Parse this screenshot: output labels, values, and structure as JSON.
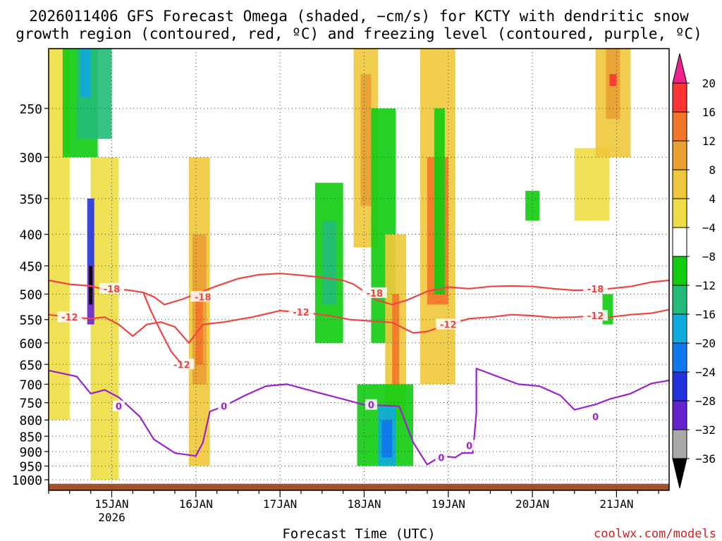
{
  "chart_data": {
    "type": "heatmap",
    "title_line1": "2026011406 GFS Forecast Omega (shaded, −cm/s) for KCTY with dendritic snow",
    "title_line2": "growth region (contoured, red, ºC) and freezing level (contoured, purple, ºC)",
    "xlabel": "Forecast Time (UTC)",
    "credit": "coolwx.com/models",
    "x_range_hours": [
      0,
      177
    ],
    "x_ticks": [
      {
        "hour": 18,
        "label": "15JAN",
        "sub": "2026"
      },
      {
        "hour": 42,
        "label": "16JAN",
        "sub": ""
      },
      {
        "hour": 66,
        "label": "17JAN",
        "sub": ""
      },
      {
        "hour": 90,
        "label": "18JAN",
        "sub": ""
      },
      {
        "hour": 114,
        "label": "19JAN",
        "sub": ""
      },
      {
        "hour": 138,
        "label": "20JAN",
        "sub": ""
      },
      {
        "hour": 162,
        "label": "21JAN",
        "sub": ""
      }
    ],
    "y_range_hpa": [
      1040,
      200
    ],
    "y_ticks": [
      {
        "p": 250,
        "label": "250"
      },
      {
        "p": 300,
        "label": "300"
      },
      {
        "p": 350,
        "label": "350"
      },
      {
        "p": 400,
        "label": "400"
      },
      {
        "p": 450,
        "label": "450"
      },
      {
        "p": 500,
        "label": "500"
      },
      {
        "p": 550,
        "label": "550"
      },
      {
        "p": 600,
        "label": "600"
      },
      {
        "p": 650,
        "label": "650"
      },
      {
        "p": 700,
        "label": "700"
      },
      {
        "p": 750,
        "label": "750"
      },
      {
        "p": 800,
        "label": "800"
      },
      {
        "p": 850,
        "label": "850"
      },
      {
        "p": 900,
        "label": "900"
      },
      {
        "p": 950,
        "label": "950"
      },
      {
        "p": 1000,
        "label": "1000"
      }
    ],
    "colorbar": {
      "labels": [
        "20",
        "16",
        "12",
        "8",
        "4",
        "−4",
        "−8",
        "−12",
        "−16",
        "−20",
        "−24",
        "−28",
        "−32",
        "−36"
      ],
      "colors": [
        "#ff3333",
        "#f4762a",
        "#e8a033",
        "#eec83a",
        "#eedd44",
        "#ffffff",
        "#11cc11",
        "#22bb77",
        "#11aadd",
        "#1177ee",
        "#2233dd",
        "#6622cc",
        "#9911cc",
        "#a8a8a8"
      ],
      "top_arrow_color": "#ee2288",
      "bottom_arrow_color": "#000000"
    },
    "contours": [
      {
        "name": "-18C",
        "color": "#ee4444",
        "label": "-18",
        "points": [
          [
            0,
            475
          ],
          [
            6,
            482
          ],
          [
            12,
            485
          ],
          [
            18,
            495
          ],
          [
            22,
            492
          ],
          [
            27,
            497
          ],
          [
            30,
            505
          ],
          [
            33,
            520
          ],
          [
            38,
            510
          ],
          [
            44,
            495
          ],
          [
            48,
            485
          ],
          [
            54,
            472
          ],
          [
            60,
            465
          ],
          [
            66,
            463
          ],
          [
            72,
            466
          ],
          [
            78,
            470
          ],
          [
            84,
            475
          ],
          [
            87,
            482
          ],
          [
            90,
            495
          ],
          [
            93,
            510
          ],
          [
            98,
            520
          ],
          [
            102,
            512
          ],
          [
            108,
            495
          ],
          [
            114,
            487
          ],
          [
            120,
            490
          ],
          [
            126,
            486
          ],
          [
            132,
            485
          ],
          [
            138,
            486
          ],
          [
            144,
            490
          ],
          [
            150,
            493
          ],
          [
            156,
            492
          ],
          [
            160,
            490
          ],
          [
            166,
            486
          ],
          [
            172,
            478
          ],
          [
            177,
            475
          ]
        ],
        "labels_at": [
          [
            18,
            490,
            "-18"
          ],
          [
            44,
            505,
            "-18"
          ],
          [
            93,
            498,
            "-18"
          ],
          [
            156,
            490,
            "-18"
          ]
        ]
      },
      {
        "name": "-12C",
        "color": "#ee4444",
        "label": "-12",
        "points": [
          [
            0,
            540
          ],
          [
            6,
            545
          ],
          [
            12,
            548
          ],
          [
            16,
            545
          ],
          [
            20,
            560
          ],
          [
            24,
            585
          ],
          [
            28,
            560
          ],
          [
            32,
            555
          ],
          [
            36,
            565
          ],
          [
            40,
            600
          ],
          [
            42,
            580
          ],
          [
            44,
            560
          ],
          [
            50,
            555
          ],
          [
            58,
            545
          ],
          [
            66,
            532
          ],
          [
            72,
            535
          ],
          [
            80,
            542
          ],
          [
            86,
            550
          ],
          [
            92,
            553
          ],
          [
            98,
            556
          ],
          [
            104,
            578
          ],
          [
            108,
            575
          ],
          [
            114,
            560
          ],
          [
            120,
            548
          ],
          [
            126,
            545
          ],
          [
            132,
            540
          ],
          [
            138,
            542
          ],
          [
            144,
            546
          ],
          [
            150,
            545
          ],
          [
            156,
            542
          ],
          [
            160,
            545
          ],
          [
            166,
            540
          ],
          [
            172,
            537
          ],
          [
            177,
            530
          ]
        ],
        "labels_at": [
          [
            6,
            545,
            "-12"
          ],
          [
            38,
            650,
            "-12"
          ],
          [
            72,
            535,
            "-12"
          ],
          [
            114,
            560,
            "-12"
          ],
          [
            156,
            542,
            "-12"
          ]
        ]
      },
      {
        "name": "-12C-branch",
        "color": "#ee4444",
        "label": "",
        "points": [
          [
            27,
            497
          ],
          [
            29,
            530
          ],
          [
            32,
            575
          ],
          [
            35,
            620
          ],
          [
            38,
            650
          ]
        ],
        "labels_at": []
      },
      {
        "name": "0C",
        "color": "#9922cc",
        "label": "0",
        "points": [
          [
            0,
            665
          ],
          [
            8,
            680
          ],
          [
            12,
            725
          ],
          [
            16,
            715
          ],
          [
            20,
            735
          ],
          [
            26,
            790
          ],
          [
            30,
            860
          ],
          [
            36,
            905
          ],
          [
            42,
            915
          ],
          [
            44,
            870
          ],
          [
            46,
            775
          ],
          [
            50,
            760
          ],
          [
            56,
            730
          ],
          [
            62,
            705
          ],
          [
            68,
            700
          ],
          [
            76,
            720
          ],
          [
            84,
            740
          ],
          [
            90,
            756
          ],
          [
            96,
            758
          ],
          [
            100,
            760
          ],
          [
            104,
            870
          ],
          [
            108,
            945
          ],
          [
            112,
            915
          ],
          [
            116,
            920
          ],
          [
            118,
            905
          ],
          [
            121,
            905
          ],
          [
            122,
            780
          ],
          [
            122,
            660
          ],
          [
            128,
            680
          ],
          [
            134,
            700
          ],
          [
            140,
            705
          ],
          [
            146,
            730
          ],
          [
            150,
            770
          ],
          [
            156,
            755
          ],
          [
            160,
            740
          ],
          [
            166,
            725
          ],
          [
            172,
            698
          ],
          [
            177,
            690
          ]
        ],
        "labels_at": [
          [
            20,
            760,
            "0"
          ],
          [
            50,
            760,
            "0"
          ],
          [
            92,
            756,
            "0"
          ],
          [
            112,
            920,
            "0"
          ],
          [
            120,
            880,
            "0"
          ],
          [
            156,
            790,
            "0"
          ]
        ]
      }
    ],
    "shaded_areas": [
      {
        "color": "#eedd44",
        "x": [
          0,
          6
        ],
        "p": [
          200,
          800
        ]
      },
      {
        "color": "#11cc11",
        "x": [
          4,
          14
        ],
        "p": [
          200,
          300
        ]
      },
      {
        "color": "#22bb77",
        "x": [
          8,
          18
        ],
        "p": [
          200,
          280
        ]
      },
      {
        "color": "#11aadd",
        "x": [
          9,
          12
        ],
        "p": [
          200,
          240
        ]
      },
      {
        "color": "#eedd44",
        "x": [
          12,
          20
        ],
        "p": [
          300,
          1000
        ]
      },
      {
        "color": "#2233dd",
        "x": [
          11,
          13
        ],
        "p": [
          350,
          450
        ]
      },
      {
        "color": "#6622cc",
        "x": [
          11,
          13
        ],
        "p": [
          450,
          560
        ]
      },
      {
        "color": "#000000",
        "x": [
          11.5,
          12.5
        ],
        "p": [
          450,
          520
        ]
      },
      {
        "color": "#eec83a",
        "x": [
          40,
          46
        ],
        "p": [
          300,
          950
        ]
      },
      {
        "color": "#e8a033",
        "x": [
          41,
          45
        ],
        "p": [
          400,
          700
        ]
      },
      {
        "color": "#f4762a",
        "x": [
          42,
          44
        ],
        "p": [
          500,
          650
        ]
      },
      {
        "color": "#11cc11",
        "x": [
          76,
          84
        ],
        "p": [
          330,
          600
        ]
      },
      {
        "color": "#22bb77",
        "x": [
          78,
          82
        ],
        "p": [
          380,
          520
        ]
      },
      {
        "color": "#eec83a",
        "x": [
          87,
          94
        ],
        "p": [
          200,
          420
        ]
      },
      {
        "color": "#e8a033",
        "x": [
          89,
          92
        ],
        "p": [
          220,
          360
        ]
      },
      {
        "color": "#11cc11",
        "x": [
          92,
          99
        ],
        "p": [
          250,
          600
        ]
      },
      {
        "color": "#eec83a",
        "x": [
          96,
          102
        ],
        "p": [
          400,
          800
        ]
      },
      {
        "color": "#f4762a",
        "x": [
          98,
          100
        ],
        "p": [
          500,
          700
        ]
      },
      {
        "color": "#11cc11",
        "x": [
          88,
          104
        ],
        "p": [
          700,
          950
        ]
      },
      {
        "color": "#11aadd",
        "x": [
          94,
          99
        ],
        "p": [
          760,
          950
        ]
      },
      {
        "color": "#1177ee",
        "x": [
          95,
          98
        ],
        "p": [
          800,
          920
        ]
      },
      {
        "color": "#eec83a",
        "x": [
          106,
          116
        ],
        "p": [
          200,
          700
        ]
      },
      {
        "color": "#f4762a",
        "x": [
          108,
          114
        ],
        "p": [
          300,
          520
        ]
      },
      {
        "color": "#11cc11",
        "x": [
          110,
          113
        ],
        "p": [
          250,
          500
        ]
      },
      {
        "color": "#11cc11",
        "x": [
          136,
          140
        ],
        "p": [
          340,
          380
        ]
      },
      {
        "color": "#eedd44",
        "x": [
          150,
          160
        ],
        "p": [
          290,
          380
        ]
      },
      {
        "color": "#eec83a",
        "x": [
          156,
          166
        ],
        "p": [
          200,
          300
        ]
      },
      {
        "color": "#e8a033",
        "x": [
          159,
          163
        ],
        "p": [
          200,
          260
        ]
      },
      {
        "color": "#ff3333",
        "x": [
          160,
          162
        ],
        "p": [
          220,
          230
        ]
      },
      {
        "color": "#11cc11",
        "x": [
          158,
          161
        ],
        "p": [
          500,
          560
        ]
      }
    ],
    "terrain_color": "#a0522d"
  }
}
